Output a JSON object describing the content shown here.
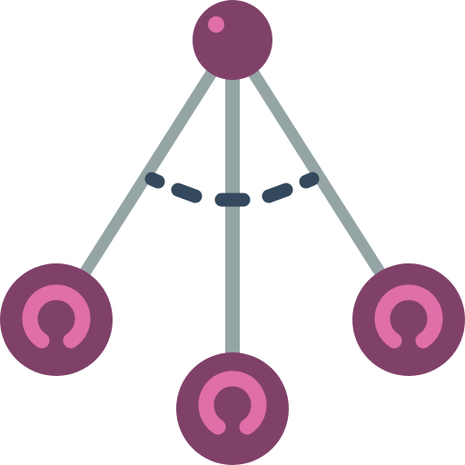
{
  "icon": {
    "name": "pendulum-icon",
    "colors": {
      "background": "#ffffff",
      "rod": "#95a5a5",
      "ball": "#804169",
      "highlight": "#df6ea9",
      "motion_arc": "#35495e"
    }
  }
}
